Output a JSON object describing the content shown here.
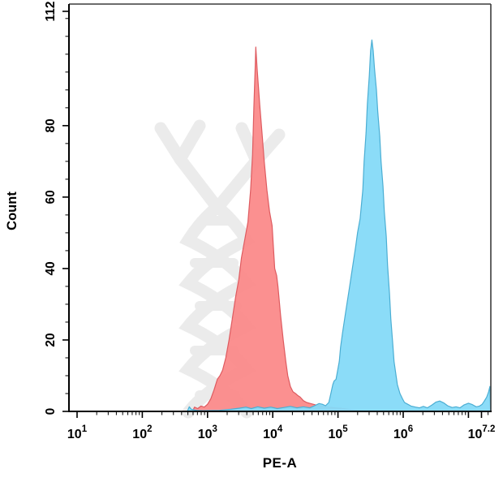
{
  "figure": {
    "background": "#ffffff"
  },
  "chart_data": {
    "type": "area",
    "subtype": "flow-cytometry-histogram",
    "title": "",
    "xlabel": "PE-A",
    "ylabel": "Count",
    "x_scale": "log10",
    "x_log_range": [
      0.87,
      7.34
    ],
    "ylim": [
      0,
      114
    ],
    "grid": false,
    "legend_position": "none",
    "x_tick_labels": [
      {
        "base": "10",
        "exp": "1",
        "log": 1
      },
      {
        "base": "10",
        "exp": "2",
        "log": 2
      },
      {
        "base": "10",
        "exp": "3",
        "log": 3
      },
      {
        "base": "10",
        "exp": "4",
        "log": 4
      },
      {
        "base": "10",
        "exp": "5",
        "log": 5
      },
      {
        "base": "10",
        "exp": "6",
        "log": 6
      },
      {
        "base": "10",
        "exp": "7.2",
        "log": 7.2
      }
    ],
    "x_unlabeled_major_logs": [
      7
    ],
    "y_tick_labels": [
      {
        "label": "0",
        "value": 0
      },
      {
        "label": "20",
        "value": 20
      },
      {
        "label": "40",
        "value": 40
      },
      {
        "label": "60",
        "value": 60
      },
      {
        "label": "80",
        "value": 80
      },
      {
        "label": "112",
        "value": 112
      }
    ],
    "y_minor_step": 5,
    "series": [
      {
        "name": "red-population",
        "fill": "#FB8A8A",
        "stroke": "#DE5B60",
        "peak": {
          "log_x": 3.74,
          "count": 102
        },
        "points": [
          [
            2.77,
            0
          ],
          [
            2.8,
            1.2
          ],
          [
            2.85,
            0.8
          ],
          [
            2.9,
            1.5
          ],
          [
            2.95,
            1.2
          ],
          [
            3.0,
            2
          ],
          [
            3.05,
            3.5
          ],
          [
            3.1,
            6
          ],
          [
            3.15,
            9
          ],
          [
            3.19,
            10
          ],
          [
            3.23,
            11.5
          ],
          [
            3.28,
            15
          ],
          [
            3.33,
            20
          ],
          [
            3.38,
            26
          ],
          [
            3.43,
            32
          ],
          [
            3.48,
            37
          ],
          [
            3.52,
            43
          ],
          [
            3.57,
            48
          ],
          [
            3.62,
            53
          ],
          [
            3.66,
            62
          ],
          [
            3.69,
            72
          ],
          [
            3.71,
            85
          ],
          [
            3.73,
            96
          ],
          [
            3.74,
            102
          ],
          [
            3.76,
            96
          ],
          [
            3.8,
            86
          ],
          [
            3.84,
            77
          ],
          [
            3.87,
            70
          ],
          [
            3.91,
            62
          ],
          [
            3.95,
            56
          ],
          [
            3.99,
            52
          ],
          [
            4.01,
            46
          ],
          [
            4.03,
            40
          ],
          [
            4.06,
            38
          ],
          [
            4.08,
            35
          ],
          [
            4.12,
            27
          ],
          [
            4.16,
            20
          ],
          [
            4.2,
            14
          ],
          [
            4.23,
            10
          ],
          [
            4.27,
            7
          ],
          [
            4.31,
            5.5
          ],
          [
            4.35,
            5
          ],
          [
            4.38,
            4.5
          ],
          [
            4.42,
            4
          ],
          [
            4.47,
            3
          ],
          [
            4.52,
            2.5
          ],
          [
            4.58,
            2.2
          ],
          [
            4.66,
            1.8
          ],
          [
            4.74,
            1.5
          ],
          [
            4.84,
            1.2
          ],
          [
            4.96,
            1
          ],
          [
            5.08,
            0.8
          ],
          [
            5.2,
            0.5
          ],
          [
            5.33,
            0.2
          ],
          [
            5.42,
            0
          ]
        ]
      },
      {
        "name": "blue-population",
        "fill": "#85DAF8",
        "stroke": "#4BAED3",
        "peak": {
          "log_x": 5.52,
          "count": 104
        },
        "points": [
          [
            2.69,
            0
          ],
          [
            2.72,
            1.3
          ],
          [
            2.75,
            0.6
          ],
          [
            2.83,
            0.3
          ],
          [
            2.93,
            0.2
          ],
          [
            3.18,
            0.3
          ],
          [
            3.36,
            0.6
          ],
          [
            3.49,
            0.9
          ],
          [
            3.59,
            1.2
          ],
          [
            3.67,
            0.8
          ],
          [
            3.77,
            1.3
          ],
          [
            3.87,
            0.9
          ],
          [
            3.97,
            1.2
          ],
          [
            4.07,
            0.8
          ],
          [
            4.17,
            1.1
          ],
          [
            4.27,
            1.4
          ],
          [
            4.37,
            1
          ],
          [
            4.47,
            1.3
          ],
          [
            4.57,
            1
          ],
          [
            4.64,
            1.6
          ],
          [
            4.71,
            2.2
          ],
          [
            4.76,
            2
          ],
          [
            4.81,
            1.6
          ],
          [
            4.86,
            2.5
          ],
          [
            4.89,
            5
          ],
          [
            4.92,
            7.5
          ],
          [
            4.94,
            8.5
          ],
          [
            4.97,
            9
          ],
          [
            4.99,
            11
          ],
          [
            5.02,
            14
          ],
          [
            5.04,
            18
          ],
          [
            5.07,
            22
          ],
          [
            5.12,
            28
          ],
          [
            5.17,
            34
          ],
          [
            5.22,
            40
          ],
          [
            5.27,
            46
          ],
          [
            5.3,
            50
          ],
          [
            5.34,
            54
          ],
          [
            5.38,
            62
          ],
          [
            5.4,
            70
          ],
          [
            5.43,
            78
          ],
          [
            5.45,
            86
          ],
          [
            5.48,
            94
          ],
          [
            5.5,
            101
          ],
          [
            5.52,
            104
          ],
          [
            5.54,
            101
          ],
          [
            5.56,
            96
          ],
          [
            5.59,
            90
          ],
          [
            5.61,
            84
          ],
          [
            5.64,
            77
          ],
          [
            5.66,
            70
          ],
          [
            5.69,
            63
          ],
          [
            5.71,
            56
          ],
          [
            5.74,
            49
          ],
          [
            5.76,
            41
          ],
          [
            5.79,
            33
          ],
          [
            5.81,
            26
          ],
          [
            5.84,
            19
          ],
          [
            5.86,
            14
          ],
          [
            5.89,
            10
          ],
          [
            5.91,
            7.5
          ],
          [
            5.95,
            5
          ],
          [
            5.99,
            3.5
          ],
          [
            6.02,
            2.5
          ],
          [
            6.07,
            2
          ],
          [
            6.12,
            1.5
          ],
          [
            6.19,
            1.2
          ],
          [
            6.25,
            1
          ],
          [
            6.31,
            1.4
          ],
          [
            6.37,
            1
          ],
          [
            6.44,
            1.8
          ],
          [
            6.5,
            2.6
          ],
          [
            6.56,
            2.9
          ],
          [
            6.62,
            2.4
          ],
          [
            6.68,
            1.6
          ],
          [
            6.75,
            1.1
          ],
          [
            6.81,
            1.3
          ],
          [
            6.87,
            1
          ],
          [
            6.93,
            1.8
          ],
          [
            7.0,
            2.3
          ],
          [
            7.06,
            1.9
          ],
          [
            7.12,
            1.3
          ],
          [
            7.17,
            1.5
          ],
          [
            7.21,
            2
          ],
          [
            7.24,
            2.8
          ],
          [
            7.28,
            4
          ],
          [
            7.31,
            5.5
          ],
          [
            7.33,
            7
          ],
          [
            7.34,
            0
          ]
        ]
      }
    ]
  },
  "watermark": {
    "name": "dna-helix",
    "color": "#EBEBEB"
  },
  "axes": {
    "line_color": "#000000",
    "border_color": "#3C3C3C",
    "tick_color": "#000000",
    "label_color": "#000000"
  }
}
